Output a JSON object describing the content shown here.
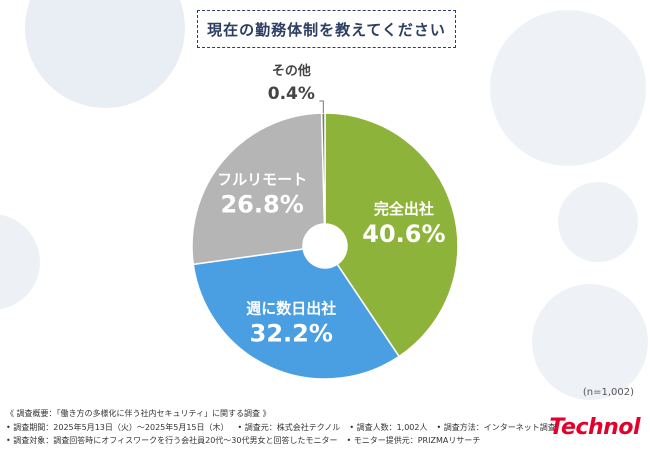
{
  "title": "現在の勤務体制を教えてください",
  "n_note": "(n=1,002)",
  "footer": {
    "line1": "《 調査概要：「働き方の多様化に伴う社内セキュリティ」に関する調査 》",
    "period": "• 調査期間：2025年5月13日（火）～2025年5月15日（木）",
    "org": "• 調査元：株式会社テクノル",
    "count": "• 調査人数：1,002人",
    "method": "• 調査方法：インターネット調査",
    "target": "• 調査対象：調査回答時にオフィスワークを行う会社員20代～30代男女と回答したモニター",
    "provider": "• モニター提供元：PRIZMAリサーチ"
  },
  "brand": "Technol",
  "chart_data": {
    "type": "pie",
    "donut": true,
    "start": "top",
    "direction": "clockwise",
    "slices": [
      {
        "label": "完全出社",
        "value": 40.6,
        "display": "40.6%",
        "color": "#8db33a",
        "label_color": "#ffffff"
      },
      {
        "label": "週に数日出社",
        "value": 32.2,
        "display": "32.2%",
        "color": "#4a9fe3",
        "label_color": "#ffffff"
      },
      {
        "label": "フルリモート",
        "value": 26.8,
        "display": "26.8%",
        "color": "#b5b5b5",
        "label_color": "#ffffff"
      },
      {
        "label": "その他",
        "value": 0.4,
        "display": "0.4%",
        "color": "#7a7a7a",
        "label_color": "#444444",
        "outside": true
      }
    ]
  }
}
